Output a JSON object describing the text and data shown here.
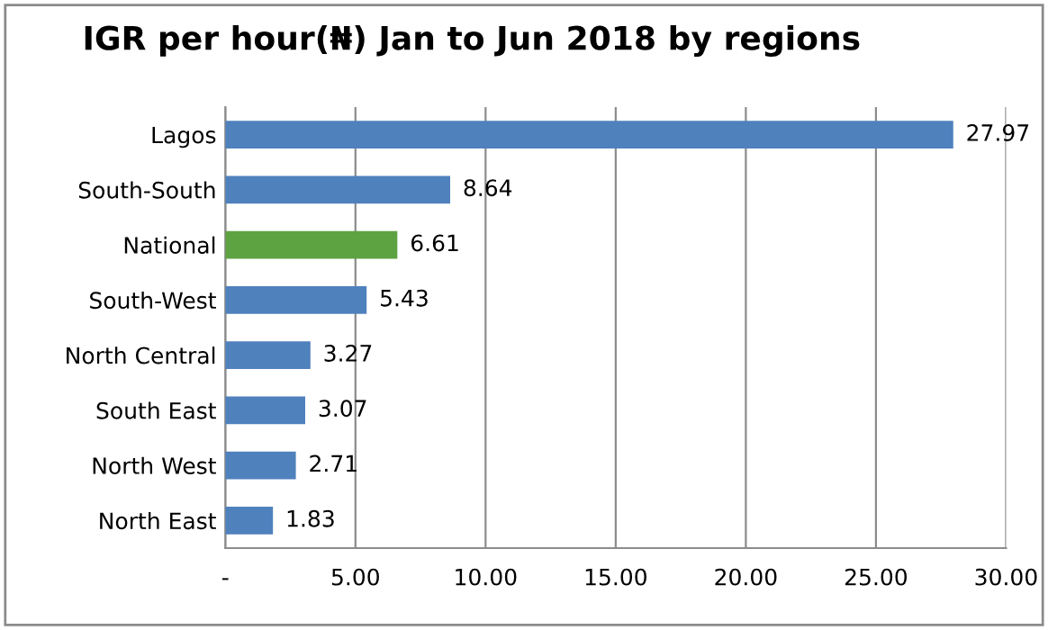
{
  "chart_data": {
    "type": "bar",
    "orientation": "horizontal",
    "title": "IGR per hour(₦) Jan to Jun 2018 by regions",
    "categories": [
      "Lagos",
      "South-South",
      "National",
      "South-West",
      "North Central",
      "South East",
      "North West",
      "North East"
    ],
    "values": [
      27.97,
      8.64,
      6.61,
      5.43,
      3.27,
      3.07,
      2.71,
      1.83
    ],
    "colors": [
      "#4f81bd",
      "#4f81bd",
      "#5ea342",
      "#4f81bd",
      "#4f81bd",
      "#4f81bd",
      "#4f81bd",
      "#4f81bd"
    ],
    "xlim": [
      0,
      30
    ],
    "xticks": [
      {
        "value": 0,
        "label": "-"
      },
      {
        "value": 5,
        "label": "5.00"
      },
      {
        "value": 10,
        "label": "10.00"
      },
      {
        "value": 15,
        "label": "15.00"
      },
      {
        "value": 20,
        "label": "20.00"
      },
      {
        "value": 25,
        "label": "25.00"
      },
      {
        "value": 30,
        "label": "30.00"
      }
    ],
    "grid": "x",
    "data_labels": true
  }
}
